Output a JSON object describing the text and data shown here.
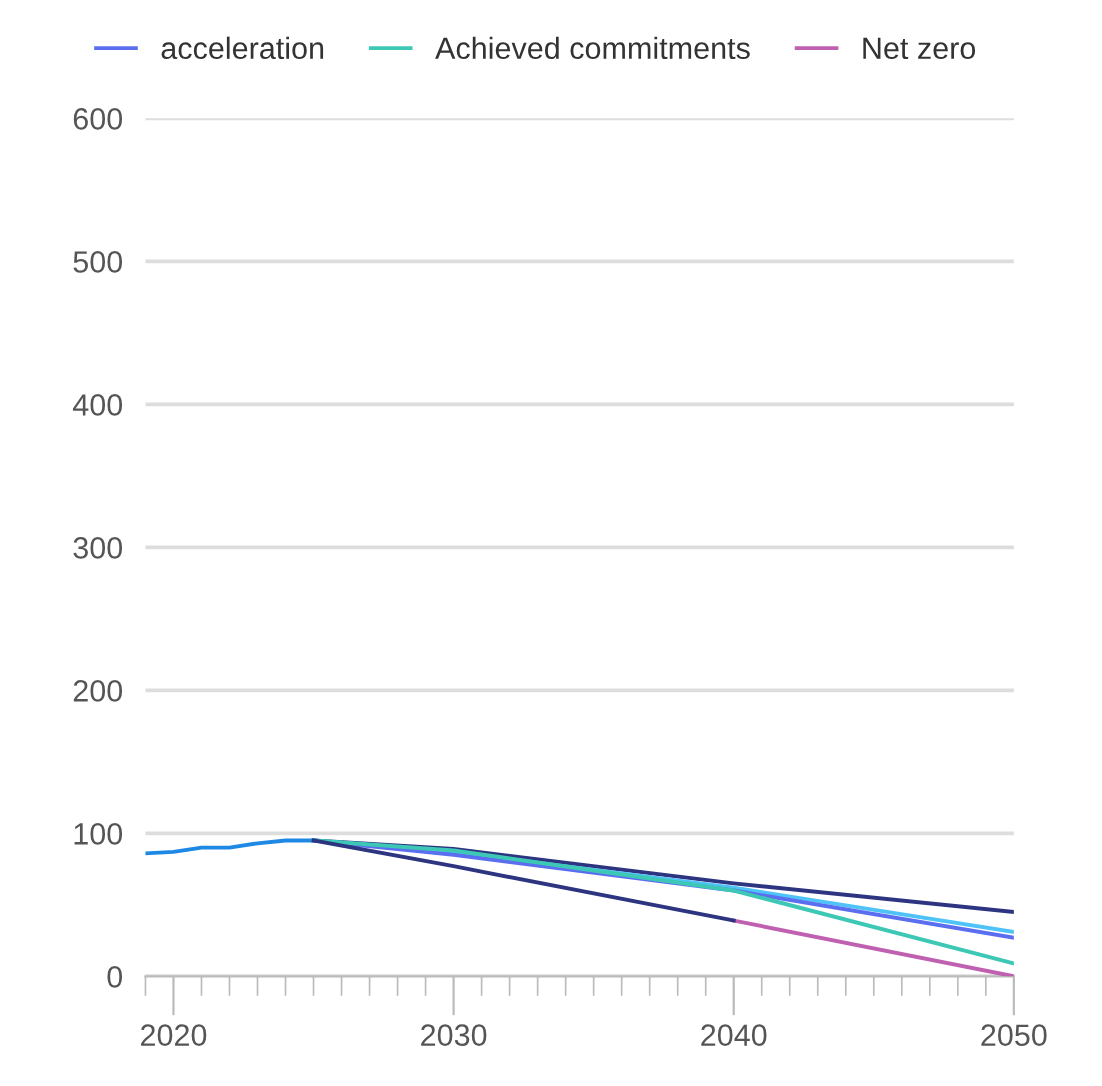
{
  "chart_data": {
    "type": "line",
    "xlim": [
      2019,
      2050
    ],
    "xticks": [
      2020,
      2030,
      2040,
      2050
    ],
    "ylim": [
      0,
      600
    ],
    "yticks": [
      0,
      100,
      200,
      300,
      400,
      500,
      600
    ],
    "grid": "y",
    "legend": "top",
    "series": [
      {
        "color": "#1e88e5",
        "x": [
          2019,
          2020,
          2021,
          2022,
          2023,
          2024,
          2025
        ],
        "values": [
          86,
          87,
          90,
          90,
          93,
          95,
          95
        ]
      },
      {
        "color": "#2d3580",
        "x": [
          2025,
          2030,
          2040,
          2050
        ],
        "values": [
          95,
          89,
          65,
          45
        ]
      },
      {
        "color": "#4fc3f7",
        "x": [
          2025,
          2030,
          2040,
          2050
        ],
        "values": [
          95,
          87,
          62,
          31
        ]
      },
      {
        "name": "acceleration",
        "color": "#5b6ef0",
        "x": [
          2025,
          2030,
          2040,
          2050
        ],
        "values": [
          95,
          85,
          60,
          27
        ]
      },
      {
        "name": "Achieved commitments",
        "color": "#3cc8b4",
        "x": [
          2025,
          2030,
          2040,
          2050
        ],
        "values": [
          95,
          88,
          60,
          9
        ]
      },
      {
        "name": "Net zero",
        "color": "#c060b0",
        "x": [
          2040,
          2050
        ],
        "values": [
          39,
          0
        ]
      },
      {
        "color": "#2d3580",
        "x": [
          2025,
          2030,
          2040
        ],
        "values": [
          95,
          77,
          39
        ]
      }
    ]
  }
}
